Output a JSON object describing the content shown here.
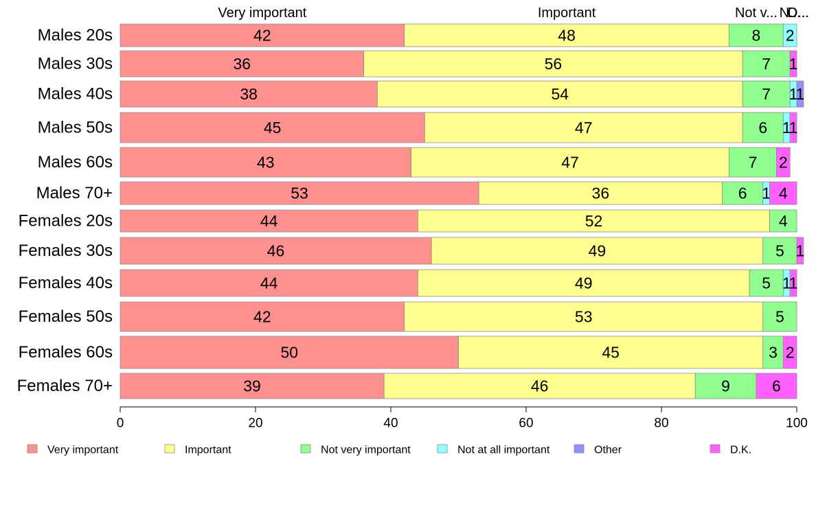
{
  "chart_data": {
    "type": "bar",
    "orientation": "horizontal",
    "stacked": true,
    "categories": [
      "Males 20s",
      "Males 30s",
      "Males 40s",
      "Males 50s",
      "Males 60s",
      "Males 70+",
      "Females 20s",
      "Females 30s",
      "Females 40s",
      "Females 50s",
      "Females 60s",
      "Females 70+"
    ],
    "series": [
      {
        "name": "Very important",
        "color": "#ff9090",
        "values": [
          42,
          36,
          38,
          45,
          43,
          53,
          44,
          46,
          44,
          42,
          50,
          39
        ]
      },
      {
        "name": "Important",
        "color": "#ffff90",
        "values": [
          48,
          56,
          54,
          47,
          47,
          36,
          52,
          49,
          49,
          53,
          45,
          46
        ]
      },
      {
        "name": "Not very important",
        "color": "#90ff90",
        "values": [
          8,
          7,
          7,
          6,
          7,
          6,
          4,
          5,
          5,
          5,
          3,
          9
        ]
      },
      {
        "name": "Not at all important",
        "color": "#90ffff",
        "values": [
          2,
          0,
          1,
          1,
          0,
          1,
          0,
          0,
          1,
          0,
          0,
          0
        ]
      },
      {
        "name": "Other",
        "color": "#9090ff",
        "values": [
          0,
          0,
          1,
          0,
          0,
          0,
          0,
          0,
          0,
          0,
          0,
          0
        ]
      },
      {
        "name": "D.K.",
        "color": "#ff60ff",
        "values": [
          0,
          1,
          0,
          1,
          2,
          4,
          0,
          1,
          1,
          0,
          2,
          6
        ]
      }
    ],
    "top_labels": [
      "Very important",
      "Important",
      "Not v...",
      "N...",
      "O...",
      "D..."
    ],
    "x_ticks": [
      0,
      20,
      40,
      60,
      80,
      100
    ],
    "xlim": [
      0,
      100
    ],
    "title": "",
    "xlabel": "",
    "ylabel": "",
    "grid": false,
    "legend_position": "bottom"
  }
}
